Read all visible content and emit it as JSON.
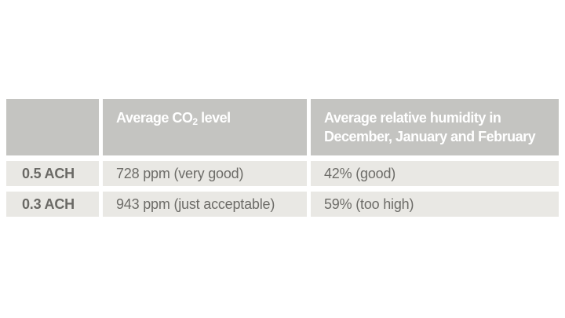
{
  "page": {
    "background": "#ffffff"
  },
  "chart_data": {
    "type": "table",
    "title": "",
    "columns": [
      "",
      "Average CO₂ level",
      "Average relative humidity in December, January and February"
    ],
    "rows": [
      [
        "0.5 ACH",
        "728 ppm (very good)",
        "42% (good)"
      ],
      [
        "0.3 ACH",
        "943 ppm (just acceptable)",
        "59% (too high)"
      ]
    ]
  },
  "table": {
    "colors": {
      "header_bg": "#c4c4c1",
      "row_bg": "#e9e8e4",
      "header_text": "#ffffff",
      "body_text": "#6d6c68"
    },
    "headers": {
      "corner": "",
      "co2_prefix": "Average CO",
      "co2_sub": "2",
      "co2_suffix": " level",
      "humidity_line1": "Average relative humidity in",
      "humidity_line2": "December, January and February"
    },
    "rows": [
      {
        "label": "0.5 ACH",
        "co2": "728 ppm (very good)",
        "humidity": "42% (good)"
      },
      {
        "label": "0.3 ACH",
        "co2": "943 ppm (just acceptable)",
        "humidity": "59% (too high)"
      }
    ]
  }
}
